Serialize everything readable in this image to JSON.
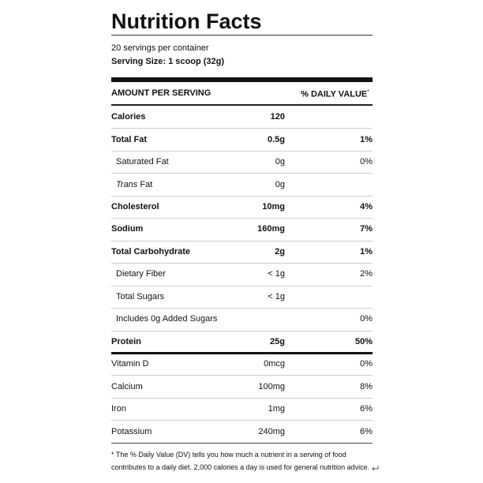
{
  "header": {
    "title": "Nutrition Facts",
    "servings": "20 servings per container",
    "serving_size": "Serving Size: 1 scoop (32g)"
  },
  "table": {
    "amount_header": "AMOUNT PER SERVING",
    "dv_header": "% DAILY VALUE",
    "dv_header_mark": "*",
    "rows": [
      {
        "name": "Calories",
        "amount": "120",
        "bold": true
      },
      {
        "name": "Total Fat",
        "amount": "0.5g",
        "dv": "1%",
        "bold": true
      },
      {
        "name": "Saturated Fat",
        "amount": "0g",
        "dv": "0%",
        "indent": true
      },
      {
        "name_em": "Trans",
        "name": " Fat",
        "amount": "0g",
        "indent": true
      },
      {
        "name": "Cholesterol",
        "amount": "10mg",
        "dv": "4%",
        "bold": true
      },
      {
        "name": "Sodium",
        "amount": "160mg",
        "dv": "7%",
        "bold": true
      },
      {
        "name": "Total Carbohydrate",
        "amount": "2g",
        "dv": "1%",
        "bold": true
      },
      {
        "name": "Dietary Fiber",
        "amount": "< 1g",
        "dv": "2%",
        "indent": true
      },
      {
        "name": "Total Sugars",
        "amount": "< 1g",
        "indent": true
      },
      {
        "name": "Includes 0g Added Sugars",
        "dv": "0%",
        "indent": true
      },
      {
        "name": "Protein",
        "amount": "25g",
        "dv": "50%",
        "bold": true,
        "thick_below": true
      },
      {
        "name": "Vitamin D",
        "amount": "0mcg",
        "dv": "0%"
      },
      {
        "name": "Calcium",
        "amount": "100mg",
        "dv": "8%"
      },
      {
        "name": "Iron",
        "amount": "1mg",
        "dv": "6%"
      },
      {
        "name": "Potassium",
        "amount": "240mg",
        "dv": "6%"
      }
    ]
  },
  "footnote": {
    "line1": "* The % Daily Value (DV) tells you how much a nutrient in a serving of food",
    "line2": "contributes to a daily diet. 2,000 calories a day is used for general nutrition advice."
  }
}
